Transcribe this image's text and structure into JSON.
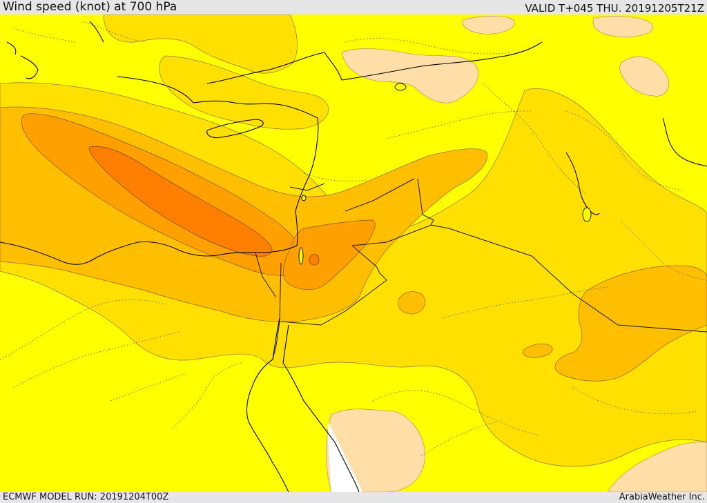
{
  "header": {
    "title": "Wind speed (knot) at 700 hPa",
    "valid_time": "VALID T+045 THU. 20191205T21Z"
  },
  "footer": {
    "model_run": "ECMWF MODEL RUN: 20191204T00Z",
    "credit": "ArabiaWeather Inc."
  },
  "map": {
    "colors": {
      "background_band": "#ffff00",
      "light_band": "#ffdea8",
      "band_1": "#ffe000",
      "band_2": "#ffbf00",
      "band_3": "#ff9f00",
      "band_4": "#ff7f00",
      "sea_blank": "#ffffff",
      "coastline": "#000000",
      "contour": "#7a6a3a"
    }
  }
}
